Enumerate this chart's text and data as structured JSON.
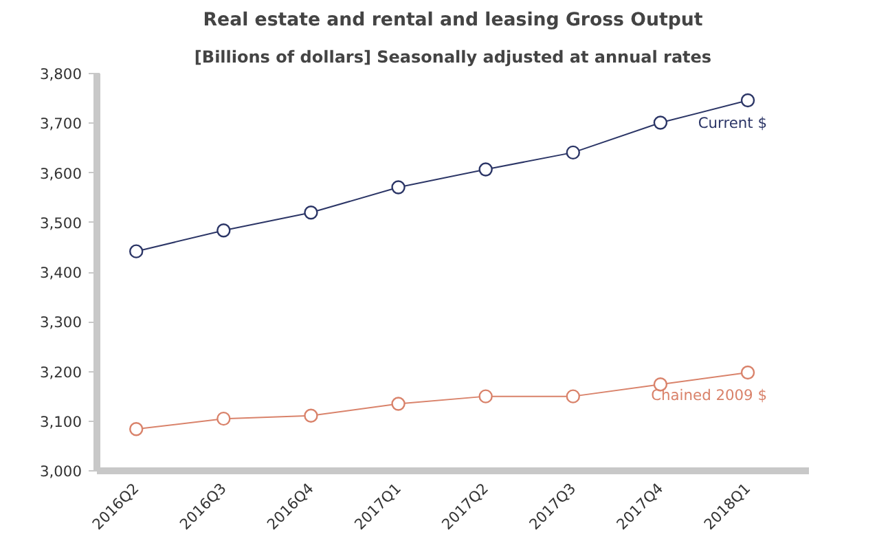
{
  "chart_data": {
    "type": "line",
    "title": "Real estate and rental and leasing Gross Output",
    "subtitle": "[Billions of dollars] Seasonally adjusted at annual rates",
    "categories": [
      "2016Q2",
      "2016Q3",
      "2016Q4",
      "2017Q1",
      "2017Q2",
      "2017Q3",
      "2017Q4",
      "2018Q1"
    ],
    "series": [
      {
        "name": "Current $",
        "color": "#2b3566",
        "values": [
          3442,
          3484,
          3520,
          3571,
          3607,
          3641,
          3701,
          3746
        ]
      },
      {
        "name": "Chained 2009 $",
        "color": "#d9826a",
        "values": [
          3084,
          3105,
          3111,
          3135,
          3150,
          3150,
          3174,
          3198
        ]
      }
    ],
    "ylim": [
      3000,
      3800
    ],
    "yticks": [
      {
        "value": 3000,
        "label": "3,000"
      },
      {
        "value": 3100,
        "label": "3,100"
      },
      {
        "value": 3200,
        "label": "3,200"
      },
      {
        "value": 3300,
        "label": "3,300"
      },
      {
        "value": 3400,
        "label": "3,400"
      },
      {
        "value": 3500,
        "label": "3,500"
      },
      {
        "value": 3600,
        "label": "3,600"
      },
      {
        "value": 3700,
        "label": "3,700"
      },
      {
        "value": 3800,
        "label": "3,800"
      }
    ],
    "grid": false,
    "marker": "circle",
    "line_style": "solid"
  }
}
